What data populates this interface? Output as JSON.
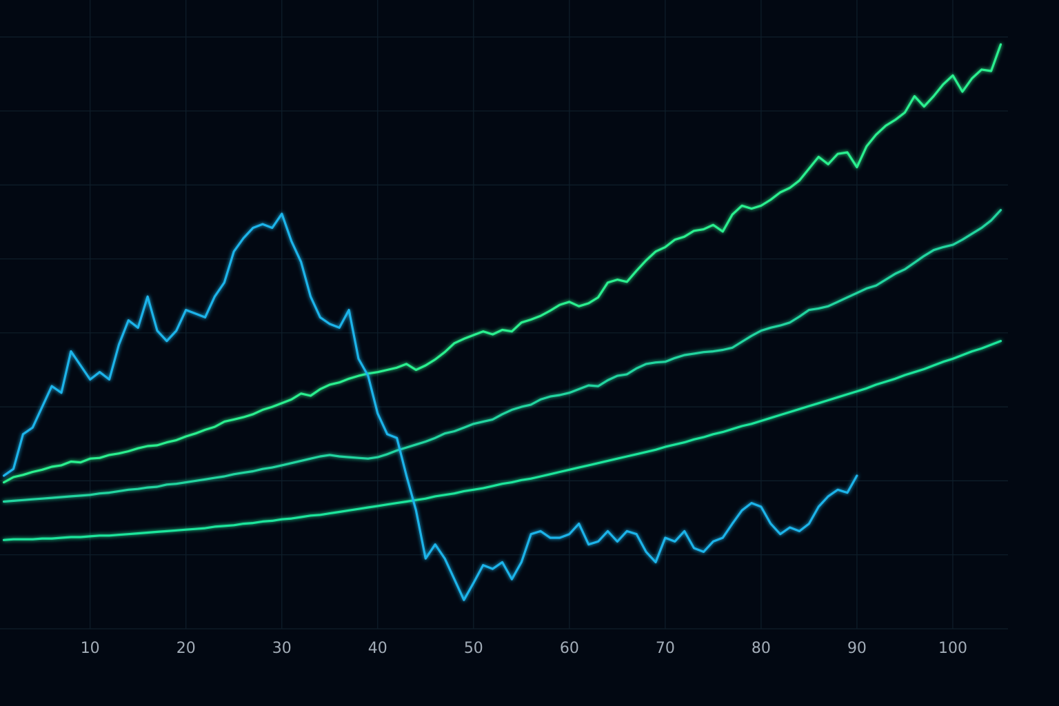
{
  "chart_data": {
    "type": "line",
    "x": [
      1,
      2,
      3,
      4,
      5,
      6,
      7,
      8,
      9,
      10,
      11,
      12,
      13,
      14,
      15,
      16,
      17,
      18,
      19,
      20,
      21,
      22,
      23,
      24,
      25,
      26,
      27,
      28,
      29,
      30,
      31,
      32,
      33,
      34,
      35,
      36,
      37,
      38,
      39,
      40,
      41,
      42,
      43,
      44,
      45,
      46,
      47,
      48,
      49,
      50,
      51,
      52,
      53,
      54,
      55,
      56,
      57,
      58,
      59,
      60,
      61,
      62,
      63,
      64,
      65,
      66,
      67,
      68,
      69,
      70,
      71,
      72,
      73,
      74,
      75,
      76,
      77,
      78,
      79,
      80,
      81,
      82,
      83,
      84,
      85,
      86,
      87,
      88,
      89,
      90,
      91,
      92,
      93,
      94,
      95,
      96,
      97,
      98,
      99,
      100,
      101,
      102,
      103,
      104,
      105
    ],
    "series": [
      {
        "color": "#2cf08f",
        "values": [
          1.98,
          2.05,
          2.08,
          2.12,
          2.15,
          2.19,
          2.21,
          2.26,
          2.25,
          2.3,
          2.31,
          2.35,
          2.37,
          2.4,
          2.44,
          2.47,
          2.48,
          2.52,
          2.55,
          2.6,
          2.64,
          2.69,
          2.73,
          2.8,
          2.83,
          2.86,
          2.9,
          2.96,
          3.0,
          3.05,
          3.1,
          3.18,
          3.15,
          3.24,
          3.3,
          3.33,
          3.38,
          3.42,
          3.45,
          3.47,
          3.5,
          3.53,
          3.58,
          3.5,
          3.56,
          3.64,
          3.74,
          3.86,
          3.92,
          3.97,
          4.02,
          3.98,
          4.04,
          4.02,
          4.14,
          4.18,
          4.23,
          4.3,
          4.38,
          4.42,
          4.36,
          4.4,
          4.48,
          4.68,
          4.72,
          4.69,
          4.84,
          4.98,
          5.1,
          5.16,
          5.26,
          5.3,
          5.38,
          5.4,
          5.46,
          5.37,
          5.6,
          5.72,
          5.68,
          5.72,
          5.8,
          5.9,
          5.96,
          6.06,
          6.22,
          6.38,
          6.28,
          6.42,
          6.44,
          6.24,
          6.52,
          6.68,
          6.8,
          6.88,
          6.98,
          7.2,
          7.06,
          7.2,
          7.36,
          7.48,
          7.26,
          7.44,
          7.56,
          7.54,
          7.9
        ]
      },
      {
        "color": "#22d6a0",
        "values": [
          1.72,
          1.73,
          1.74,
          1.75,
          1.76,
          1.77,
          1.78,
          1.79,
          1.8,
          1.81,
          1.83,
          1.84,
          1.86,
          1.88,
          1.89,
          1.91,
          1.92,
          1.95,
          1.96,
          1.98,
          2.0,
          2.02,
          2.04,
          2.06,
          2.09,
          2.11,
          2.13,
          2.16,
          2.18,
          2.21,
          2.24,
          2.27,
          2.3,
          2.33,
          2.35,
          2.33,
          2.32,
          2.31,
          2.3,
          2.32,
          2.36,
          2.41,
          2.45,
          2.49,
          2.53,
          2.58,
          2.64,
          2.67,
          2.72,
          2.77,
          2.8,
          2.83,
          2.9,
          2.96,
          3.0,
          3.03,
          3.1,
          3.14,
          3.16,
          3.19,
          3.24,
          3.29,
          3.28,
          3.36,
          3.42,
          3.44,
          3.52,
          3.58,
          3.6,
          3.61,
          3.66,
          3.7,
          3.72,
          3.74,
          3.75,
          3.77,
          3.8,
          3.88,
          3.96,
          4.03,
          4.07,
          4.1,
          4.14,
          4.22,
          4.31,
          4.33,
          4.36,
          4.42,
          4.48,
          4.54,
          4.6,
          4.64,
          4.72,
          4.8,
          4.86,
          4.95,
          5.04,
          5.12,
          5.16,
          5.19,
          5.26,
          5.34,
          5.42,
          5.52,
          5.66
        ]
      },
      {
        "color": "#1ee69c",
        "values": [
          1.2,
          1.21,
          1.21,
          1.21,
          1.22,
          1.22,
          1.23,
          1.24,
          1.24,
          1.25,
          1.26,
          1.26,
          1.27,
          1.28,
          1.29,
          1.3,
          1.31,
          1.32,
          1.33,
          1.34,
          1.35,
          1.36,
          1.38,
          1.39,
          1.4,
          1.42,
          1.43,
          1.45,
          1.46,
          1.48,
          1.49,
          1.51,
          1.53,
          1.54,
          1.56,
          1.58,
          1.6,
          1.62,
          1.64,
          1.66,
          1.68,
          1.7,
          1.72,
          1.74,
          1.76,
          1.79,
          1.81,
          1.83,
          1.86,
          1.88,
          1.9,
          1.93,
          1.96,
          1.98,
          2.01,
          2.03,
          2.06,
          2.09,
          2.12,
          2.15,
          2.18,
          2.21,
          2.24,
          2.27,
          2.3,
          2.33,
          2.36,
          2.39,
          2.42,
          2.46,
          2.49,
          2.52,
          2.56,
          2.59,
          2.63,
          2.66,
          2.7,
          2.74,
          2.77,
          2.81,
          2.85,
          2.89,
          2.93,
          2.97,
          3.01,
          3.05,
          3.09,
          3.13,
          3.17,
          3.21,
          3.25,
          3.3,
          3.34,
          3.38,
          3.43,
          3.47,
          3.51,
          3.56,
          3.61,
          3.65,
          3.7,
          3.75,
          3.79,
          3.84,
          3.89
        ]
      },
      {
        "color": "#1fb4ea",
        "values": [
          2.07,
          2.16,
          2.63,
          2.72,
          3.0,
          3.28,
          3.19,
          3.75,
          3.56,
          3.37,
          3.47,
          3.37,
          3.84,
          4.17,
          4.07,
          4.49,
          4.03,
          3.89,
          4.03,
          4.31,
          4.26,
          4.21,
          4.49,
          4.68,
          5.1,
          5.28,
          5.42,
          5.47,
          5.42,
          5.61,
          5.24,
          4.96,
          4.49,
          4.21,
          4.12,
          4.07,
          4.31,
          3.65,
          3.42,
          2.91,
          2.63,
          2.58,
          2.07,
          1.6,
          0.95,
          1.14,
          0.95,
          0.67,
          0.39,
          0.62,
          0.86,
          0.81,
          0.9,
          0.67,
          0.9,
          1.28,
          1.32,
          1.23,
          1.23,
          1.28,
          1.42,
          1.14,
          1.18,
          1.32,
          1.18,
          1.32,
          1.28,
          1.04,
          0.9,
          1.23,
          1.18,
          1.32,
          1.09,
          1.04,
          1.18,
          1.23,
          1.42,
          1.6,
          1.7,
          1.65,
          1.42,
          1.28,
          1.37,
          1.32,
          1.42,
          1.65,
          1.79,
          1.88,
          1.84,
          2.07,
          null,
          null,
          null,
          null,
          null,
          null,
          null,
          null,
          null,
          null,
          null,
          null,
          null,
          null,
          null
        ]
      }
    ],
    "xlim": [
      0.6,
      110
    ],
    "xticks": [
      10,
      20,
      30,
      40,
      50,
      60,
      70,
      80,
      90,
      100
    ],
    "ylim": [
      0,
      8.5
    ],
    "yticks": [
      0,
      1,
      2,
      3,
      4,
      5,
      6,
      7,
      8
    ],
    "grid": true,
    "show_ytick_labels": false
  }
}
